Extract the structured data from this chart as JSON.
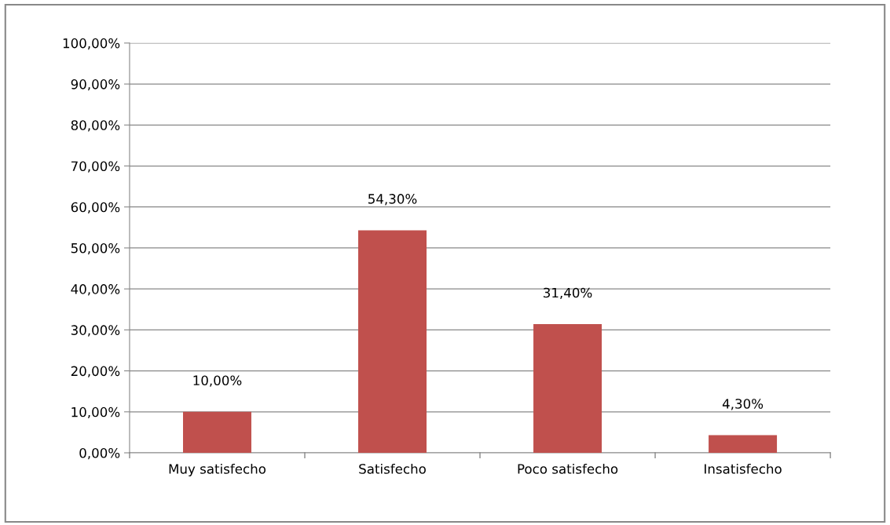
{
  "chart_data": {
    "type": "bar",
    "categories": [
      "Muy satisfecho",
      "Satisfecho",
      "Poco satisfecho",
      "Insatisfecho"
    ],
    "values": [
      10.0,
      54.3,
      31.4,
      4.3
    ],
    "value_labels": [
      "10,00%",
      "54,30%",
      "31,40%",
      "4,30%"
    ],
    "color": "#c0504d",
    "ylim": [
      0,
      100
    ],
    "yticks": [
      {
        "value": 0,
        "label": "0,00%"
      },
      {
        "value": 10,
        "label": "10,00%"
      },
      {
        "value": 20,
        "label": "20,00%"
      },
      {
        "value": 30,
        "label": "30,00%"
      },
      {
        "value": 40,
        "label": "40,00%"
      },
      {
        "value": 50,
        "label": "50,00%"
      },
      {
        "value": 60,
        "label": "60,00%"
      },
      {
        "value": 70,
        "label": "70,00%"
      },
      {
        "value": 80,
        "label": "80,00%"
      },
      {
        "value": 90,
        "label": "90,00%"
      },
      {
        "value": 100,
        "label": "100,00%"
      }
    ],
    "grid": "y",
    "legend": false
  }
}
